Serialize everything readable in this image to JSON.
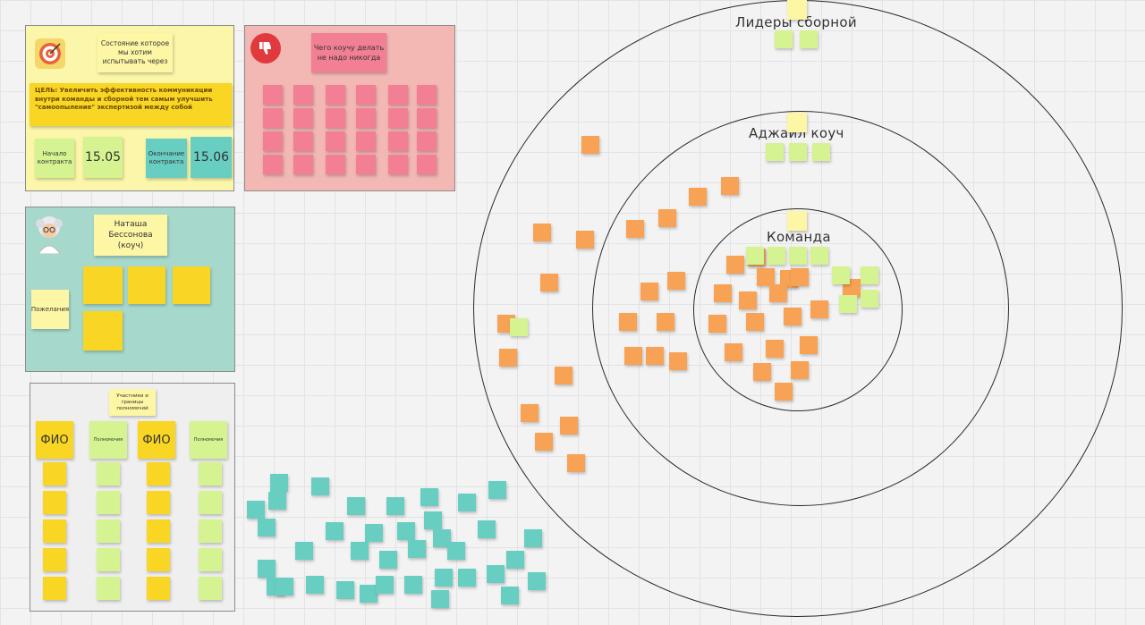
{
  "frames": {
    "goal": {
      "header": "Состояние которое мы хотим испытывать через",
      "goal_text": "ЦЕЛЬ: Увеличить эффективность коммуникации внутри команды и сборной тем самым улучшить \"самоопыление\" экспертизой между собой",
      "start_label": "Начало контракта",
      "start_date": "15.05",
      "end_label": "Окончание контракта",
      "end_date": "15.06"
    },
    "dont": {
      "title": "Чего коучу делать не надо никогда"
    },
    "coach": {
      "name": "Наташа Бессонова (коуч)",
      "side_note": "Пожелания"
    },
    "roles": {
      "title": "Участники и границы полномочий",
      "col_fio": "ФИО",
      "col_powers": "Полномочия"
    }
  },
  "board": {
    "circle_outer_label": "Лидеры сборной",
    "circle_middle_label": "Аджайл коуч",
    "circle_inner_label": "Команда"
  },
  "colors": {
    "yellow": "#fde96b",
    "green": "#d5f390",
    "teal": "#69cec2",
    "orange": "#f8a256",
    "pink": "#f27f93",
    "goal_frame": "#fbf6a9",
    "dont_frame": "#f3b7b4",
    "coach_frame": "#a7d8cc"
  },
  "icons": [
    "target-icon",
    "thumbs-down-icon",
    "scientist-avatar-icon"
  ]
}
